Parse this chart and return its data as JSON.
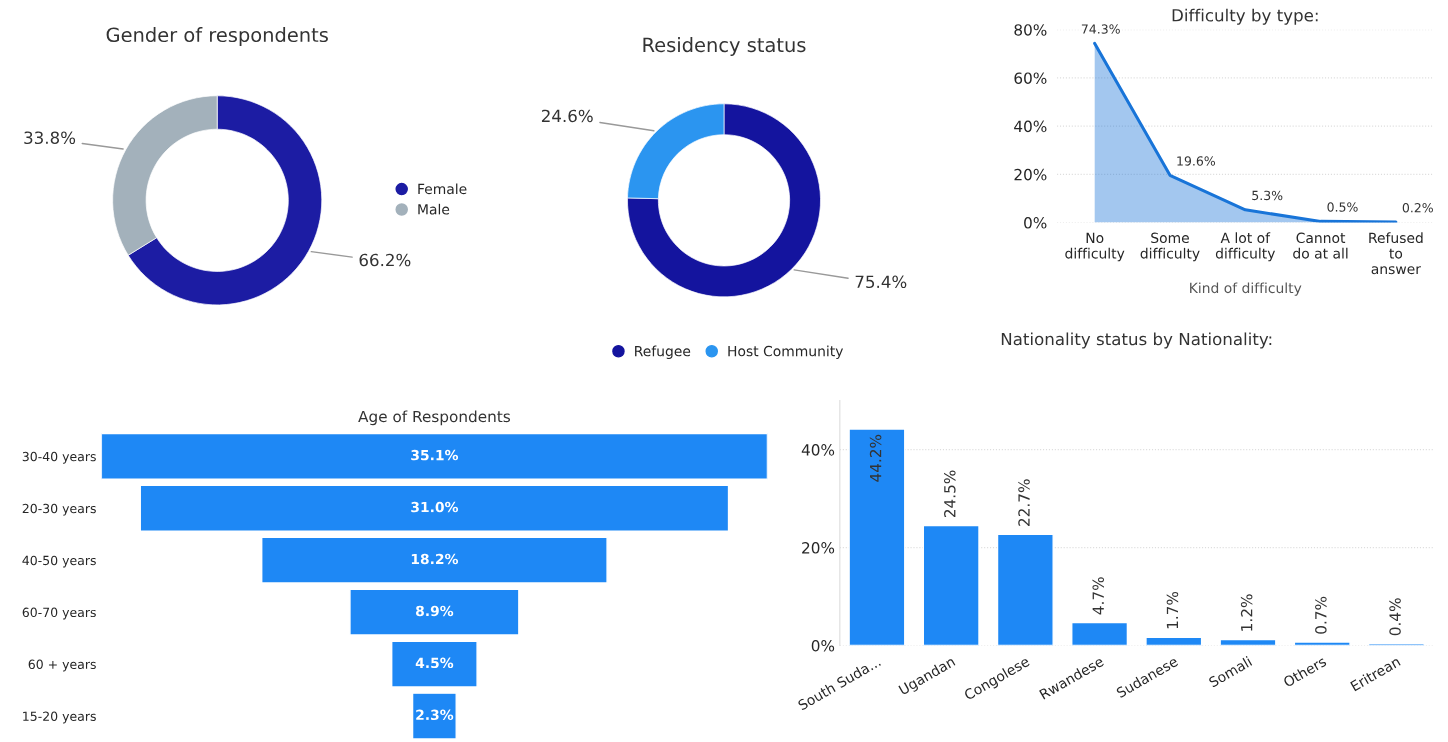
{
  "chart_data": [
    {
      "type": "donut",
      "title": "Gender of respondents",
      "categories": [
        "Female",
        "Male"
      ],
      "values": [
        66.2,
        33.8
      ],
      "colors": [
        "#1c1ca3",
        "#a3b1bb"
      ],
      "value_labels": [
        "66.2%",
        "33.8%"
      ],
      "legend": "right"
    },
    {
      "type": "donut",
      "title": "Residency status",
      "categories": [
        "Refugee",
        "Host Community"
      ],
      "values": [
        75.4,
        24.6
      ],
      "colors": [
        "#14149e",
        "#2b95f0"
      ],
      "value_labels": [
        "75.4%",
        "24.6%"
      ],
      "legend": "bottom"
    },
    {
      "type": "area",
      "title": "Difficulty by type:",
      "xlabel": "Kind of difficulty",
      "categories": [
        "No\ndifficulty",
        "Some\ndifficulty",
        "A lot of\ndifficulty",
        "Cannot\ndo at all",
        "Refused\nto\nanswer"
      ],
      "series": [
        {
          "color": "#1874d8",
          "values": [
            74.3,
            19.6,
            5.3,
            0.5,
            0.2
          ]
        }
      ],
      "value_labels": [
        "74.3%",
        "19.6%",
        "5.3%",
        "0.5%",
        "0.2%"
      ],
      "ylim": [
        0,
        80
      ],
      "yticks": [
        {
          "value": 0,
          "label": "0%"
        },
        {
          "value": 20,
          "label": "20%"
        },
        {
          "value": 40,
          "label": "40%"
        },
        {
          "value": 60,
          "label": "60%"
        },
        {
          "value": 80,
          "label": "80%"
        }
      ],
      "grid": "y"
    },
    {
      "type": "other",
      "title": "Age of Respondents",
      "categories": [
        "30-40 years",
        "20-30 years",
        "40-50 years",
        "60-70 years",
        "60 + years",
        "15-20 years"
      ],
      "values": [
        35.1,
        31.0,
        18.2,
        8.9,
        4.5,
        2.3
      ],
      "colors": [
        "#1e88f5",
        "#1e88f5",
        "#1e88f5",
        "#1e88f5",
        "#1e88f5",
        "#1e88f5"
      ],
      "value_labels": [
        "35.1%",
        "31.0%",
        "18.2%",
        "8.9%",
        "4.5%",
        "2.3%"
      ]
    },
    {
      "type": "bar",
      "title": "Nationality status by Nationality:",
      "categories": [
        "South Suda...",
        "Ugandan",
        "Congolese",
        "Rwandese",
        "Sudanese",
        "Somali",
        "Others",
        "Eritrean"
      ],
      "values": [
        44.2,
        24.5,
        22.7,
        4.7,
        1.7,
        1.2,
        0.7,
        0.4
      ],
      "colors": [
        "#1e88f5",
        "#1e88f5",
        "#1e88f5",
        "#1e88f5",
        "#1e88f5",
        "#1e88f5",
        "#1e88f5",
        "#1e88f5"
      ],
      "value_labels": [
        "44.2%",
        "24.5%",
        "22.7%",
        "4.7%",
        "1.7%",
        "1.2%",
        "0.7%",
        "0.4%"
      ],
      "ylim": [
        0,
        50
      ],
      "yticks": [
        {
          "value": 0,
          "label": "0%"
        },
        {
          "value": 20,
          "label": "20%"
        },
        {
          "value": 40,
          "label": "40%"
        }
      ],
      "grid": "y"
    }
  ]
}
